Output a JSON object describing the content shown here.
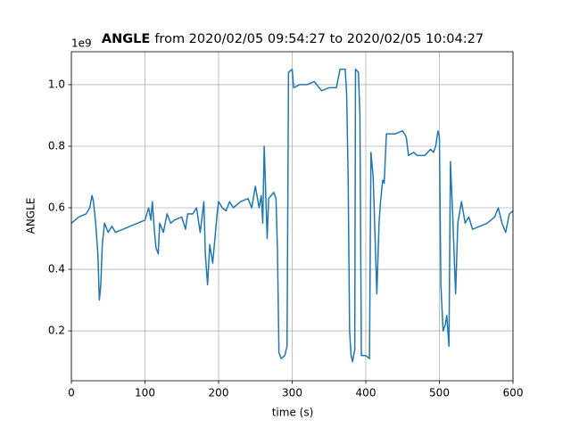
{
  "chart_data": {
    "type": "line",
    "title": {
      "bold": "ANGLE",
      "rest": "from 2020/02/05 09:54:27 to 2020/02/05 10:04:27"
    },
    "x_label": "time (s)",
    "y_label": "ANGLE",
    "y_offset_label": "1e9",
    "x": [
      0,
      10,
      20,
      25,
      28,
      30,
      33,
      36,
      38,
      40,
      42,
      45,
      50,
      55,
      60,
      70,
      80,
      90,
      100,
      105,
      108,
      110,
      113,
      115,
      118,
      120,
      125,
      130,
      135,
      140,
      150,
      155,
      158,
      165,
      170,
      175,
      180,
      182,
      185,
      188,
      192,
      195,
      198,
      200,
      205,
      210,
      215,
      220,
      230,
      240,
      245,
      250,
      255,
      258,
      260,
      262,
      264,
      266,
      268,
      275,
      278,
      280,
      282,
      285,
      290,
      293,
      295,
      300,
      302,
      310,
      320,
      330,
      340,
      350,
      360,
      365,
      372,
      374,
      376,
      378,
      380,
      382,
      385,
      386,
      390,
      392,
      394,
      400,
      405,
      407,
      410,
      412,
      415,
      418,
      420,
      423,
      425,
      428,
      440,
      450,
      455,
      458,
      465,
      470,
      480,
      488,
      492,
      495,
      498,
      500,
      502,
      505,
      508,
      510,
      513,
      515,
      518,
      520,
      522,
      525,
      530,
      535,
      540,
      545,
      555,
      565,
      575,
      580,
      585,
      590,
      595,
      600
    ],
    "series": [
      {
        "name": "ANGLE",
        "color": "#1f77b4",
        "values": [
          0.55,
          0.57,
          0.58,
          0.6,
          0.64,
          0.62,
          0.55,
          0.45,
          0.3,
          0.35,
          0.48,
          0.55,
          0.52,
          0.54,
          0.52,
          0.53,
          0.54,
          0.55,
          0.56,
          0.6,
          0.56,
          0.62,
          0.52,
          0.47,
          0.45,
          0.55,
          0.52,
          0.58,
          0.55,
          0.56,
          0.57,
          0.53,
          0.58,
          0.58,
          0.6,
          0.52,
          0.62,
          0.45,
          0.35,
          0.48,
          0.42,
          0.5,
          0.58,
          0.62,
          0.6,
          0.59,
          0.62,
          0.6,
          0.62,
          0.63,
          0.6,
          0.67,
          0.6,
          0.64,
          0.55,
          0.8,
          0.65,
          0.5,
          0.63,
          0.65,
          0.63,
          0.46,
          0.13,
          0.11,
          0.12,
          0.15,
          1.04,
          1.05,
          0.99,
          1.0,
          1.0,
          1.01,
          0.98,
          0.99,
          0.99,
          1.05,
          1.05,
          0.97,
          0.7,
          0.2,
          0.12,
          0.1,
          0.14,
          1.05,
          1.04,
          0.9,
          0.12,
          0.12,
          0.11,
          0.78,
          0.7,
          0.55,
          0.32,
          0.55,
          0.62,
          0.69,
          0.68,
          0.84,
          0.84,
          0.85,
          0.83,
          0.77,
          0.78,
          0.77,
          0.77,
          0.79,
          0.78,
          0.8,
          0.85,
          0.83,
          0.35,
          0.2,
          0.22,
          0.25,
          0.15,
          0.75,
          0.58,
          0.45,
          0.32,
          0.55,
          0.62,
          0.55,
          0.57,
          0.53,
          0.54,
          0.55,
          0.57,
          0.6,
          0.55,
          0.52,
          0.58,
          0.59
        ]
      }
    ],
    "xlim": [
      0,
      600
    ],
    "xticks": [
      0,
      100,
      200,
      300,
      400,
      500,
      600
    ],
    "ylim": [
      0.038,
      1.107
    ],
    "yticks": [
      0.2,
      0.4,
      0.6,
      0.8,
      {
        "value": 1,
        "label": "1.0"
      }
    ],
    "grid": true
  }
}
